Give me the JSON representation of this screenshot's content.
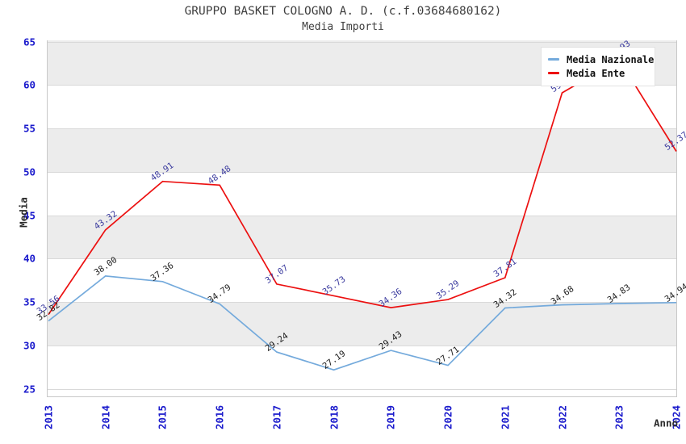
{
  "chart_data": {
    "type": "line",
    "title": "GRUPPO BASKET COLOGNO A. D. (c.f.03684680162)",
    "subtitle": "Media Importi",
    "xlabel": "Anno",
    "ylabel": "Media",
    "x": [
      2013,
      2014,
      2015,
      2016,
      2017,
      2018,
      2019,
      2020,
      2021,
      2022,
      2023,
      2024
    ],
    "series": [
      {
        "name": "Media Nazionale",
        "color": "#74AADC",
        "label_color": "#1C1C1C",
        "values": [
          32.82,
          38.0,
          37.36,
          34.79,
          29.24,
          27.19,
          29.43,
          27.71,
          34.32,
          34.68,
          34.83,
          34.94
        ]
      },
      {
        "name": "Media Ente",
        "color": "#EC1010",
        "label_color": "#3A3A9E",
        "values": [
          33.56,
          43.32,
          48.91,
          48.48,
          37.07,
          35.73,
          34.36,
          35.29,
          37.81,
          59.11,
          62.93,
          52.37
        ]
      }
    ],
    "ylim": [
      25,
      65
    ],
    "ytick_step": 5,
    "yticks": [
      25,
      30,
      35,
      40,
      45,
      50,
      55,
      60,
      65
    ],
    "grid": true,
    "band_colors": [
      "#ECECEC",
      "#FFFFFF"
    ],
    "legend_position": "top-right",
    "tick_label_color": "#1A1ACC",
    "label_decimals": 2
  }
}
